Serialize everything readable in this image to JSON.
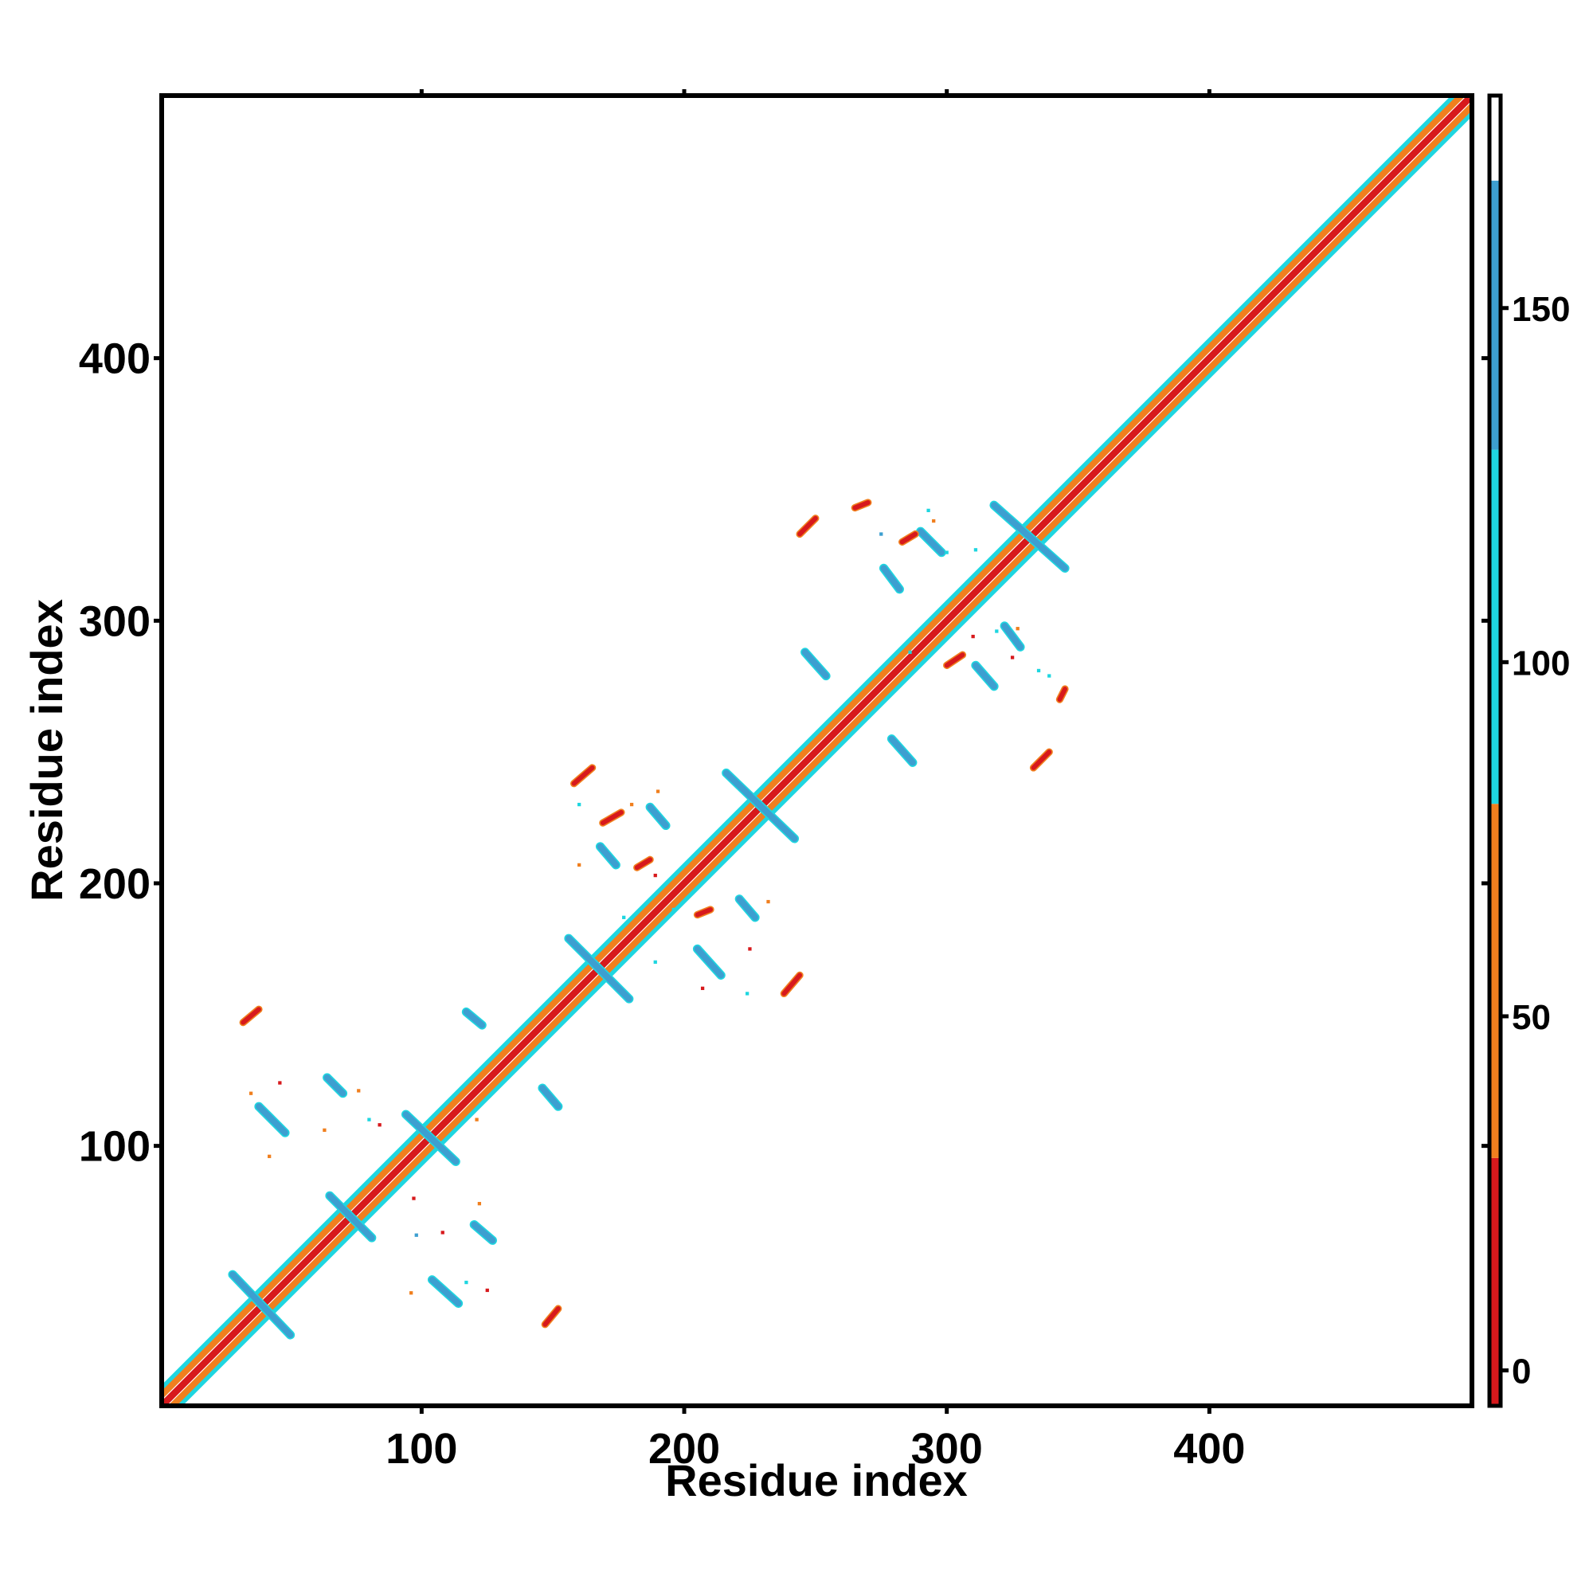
{
  "chart_data": {
    "type": "heatmap",
    "title": "",
    "xlabel": "Residue index",
    "ylabel": "Residue index",
    "xlim": [
      1,
      500
    ],
    "ylim": [
      1,
      500
    ],
    "x_ticks": [
      "100",
      "200",
      "300",
      "400"
    ],
    "y_ticks": [
      "100",
      "200",
      "300",
      "400"
    ],
    "grid": false,
    "legend": "colorbar-right",
    "colorbar": {
      "range": [
        -5,
        180
      ],
      "ticks": [
        "0",
        "50",
        "100",
        "150"
      ],
      "bands": [
        {
          "from": -5,
          "to": 30,
          "color": "#d7191c"
        },
        {
          "from": 30,
          "to": 80,
          "color": "#f07f1e"
        },
        {
          "from": 80,
          "to": 130,
          "color": "#1ed6e0"
        },
        {
          "from": 130,
          "to": 168,
          "color": "#3d9fd0"
        },
        {
          "from": 168,
          "to": 180,
          "color": "#ffffff"
        }
      ]
    },
    "diagonal": {
      "from": 1,
      "to": 499
    },
    "strands_blue": [
      {
        "x1": 28,
        "y1": 51,
        "x2": 50,
        "y2": 28
      },
      {
        "x1": 38,
        "y1": 115,
        "x2": 48,
        "y2": 105
      },
      {
        "x1": 64,
        "y1": 126,
        "x2": 70,
        "y2": 120
      },
      {
        "x1": 65,
        "y1": 81,
        "x2": 81,
        "y2": 65
      },
      {
        "x1": 94,
        "y1": 112,
        "x2": 113,
        "y2": 94
      },
      {
        "x1": 104,
        "y1": 49,
        "x2": 114,
        "y2": 40
      },
      {
        "x1": 117,
        "y1": 151,
        "x2": 123,
        "y2": 146
      },
      {
        "x1": 120,
        "y1": 70,
        "x2": 127,
        "y2": 64
      },
      {
        "x1": 146,
        "y1": 122,
        "x2": 152,
        "y2": 115
      },
      {
        "x1": 156,
        "y1": 179,
        "x2": 179,
        "y2": 156
      },
      {
        "x1": 168,
        "y1": 214,
        "x2": 174,
        "y2": 207
      },
      {
        "x1": 187,
        "y1": 229,
        "x2": 193,
        "y2": 222
      },
      {
        "x1": 205,
        "y1": 175,
        "x2": 214,
        "y2": 165
      },
      {
        "x1": 221,
        "y1": 194,
        "x2": 227,
        "y2": 187
      },
      {
        "x1": 216,
        "y1": 242,
        "x2": 242,
        "y2": 217
      },
      {
        "x1": 246,
        "y1": 288,
        "x2": 254,
        "y2": 279
      },
      {
        "x1": 279,
        "y1": 255,
        "x2": 287,
        "y2": 246
      },
      {
        "x1": 276,
        "y1": 320,
        "x2": 282,
        "y2": 312
      },
      {
        "x1": 290,
        "y1": 334,
        "x2": 298,
        "y2": 326
      },
      {
        "x1": 311,
        "y1": 283,
        "x2": 318,
        "y2": 275
      },
      {
        "x1": 318,
        "y1": 344,
        "x2": 345,
        "y2": 320
      },
      {
        "x1": 322,
        "y1": 298,
        "x2": 328,
        "y2": 290
      }
    ],
    "strands_red": [
      {
        "x1": 32,
        "y1": 147,
        "x2": 38,
        "y2": 152
      },
      {
        "x1": 147,
        "y1": 32,
        "x2": 152,
        "y2": 38
      },
      {
        "x1": 158,
        "y1": 238,
        "x2": 165,
        "y2": 244
      },
      {
        "x1": 238,
        "y1": 158,
        "x2": 244,
        "y2": 165
      },
      {
        "x1": 244,
        "y1": 333,
        "x2": 250,
        "y2": 339
      },
      {
        "x1": 333,
        "y1": 244,
        "x2": 339,
        "y2": 250
      },
      {
        "x1": 265,
        "y1": 343,
        "x2": 270,
        "y2": 345
      },
      {
        "x1": 343,
        "y1": 270,
        "x2": 345,
        "y2": 274
      },
      {
        "x1": 283,
        "y1": 330,
        "x2": 288,
        "y2": 333
      },
      {
        "x1": 300,
        "y1": 283,
        "x2": 306,
        "y2": 287
      },
      {
        "x1": 169,
        "y1": 223,
        "x2": 176,
        "y2": 227
      },
      {
        "x1": 205,
        "y1": 188,
        "x2": 210,
        "y2": 190
      },
      {
        "x1": 182,
        "y1": 206,
        "x2": 187,
        "y2": 209
      }
    ],
    "specks": [
      {
        "x": 35,
        "y": 120,
        "c": "o"
      },
      {
        "x": 46,
        "y": 124,
        "c": "r"
      },
      {
        "x": 42,
        "y": 96,
        "c": "o"
      },
      {
        "x": 63,
        "y": 106,
        "c": "o"
      },
      {
        "x": 76,
        "y": 121,
        "c": "o"
      },
      {
        "x": 80,
        "y": 110,
        "c": "c"
      },
      {
        "x": 84,
        "y": 108,
        "c": "r"
      },
      {
        "x": 97,
        "y": 80,
        "c": "r"
      },
      {
        "x": 98,
        "y": 66,
        "c": "b"
      },
      {
        "x": 96,
        "y": 44,
        "c": "o"
      },
      {
        "x": 108,
        "y": 67,
        "c": "r"
      },
      {
        "x": 117,
        "y": 48,
        "c": "c"
      },
      {
        "x": 122,
        "y": 78,
        "c": "o"
      },
      {
        "x": 125,
        "y": 45,
        "c": "r"
      },
      {
        "x": 121,
        "y": 110,
        "c": "o"
      },
      {
        "x": 160,
        "y": 230,
        "c": "c"
      },
      {
        "x": 160,
        "y": 207,
        "c": "o"
      },
      {
        "x": 177,
        "y": 187,
        "c": "c"
      },
      {
        "x": 180,
        "y": 230,
        "c": "o"
      },
      {
        "x": 190,
        "y": 235,
        "c": "o"
      },
      {
        "x": 189,
        "y": 203,
        "c": "r"
      },
      {
        "x": 189,
        "y": 170,
        "c": "c"
      },
      {
        "x": 196,
        "y": 190,
        "c": "c"
      },
      {
        "x": 207,
        "y": 160,
        "c": "r"
      },
      {
        "x": 224,
        "y": 158,
        "c": "c"
      },
      {
        "x": 225,
        "y": 175,
        "c": "r"
      },
      {
        "x": 232,
        "y": 193,
        "c": "o"
      },
      {
        "x": 275,
        "y": 333,
        "c": "b"
      },
      {
        "x": 285,
        "y": 331,
        "c": "r"
      },
      {
        "x": 286,
        "y": 288,
        "c": "c"
      },
      {
        "x": 293,
        "y": 342,
        "c": "c"
      },
      {
        "x": 295,
        "y": 338,
        "c": "o"
      },
      {
        "x": 300,
        "y": 326,
        "c": "c"
      },
      {
        "x": 310,
        "y": 294,
        "c": "r"
      },
      {
        "x": 319,
        "y": 296,
        "c": "c"
      },
      {
        "x": 325,
        "y": 286,
        "c": "r"
      },
      {
        "x": 327,
        "y": 297,
        "c": "o"
      },
      {
        "x": 335,
        "y": 281,
        "c": "c"
      },
      {
        "x": 339,
        "y": 279,
        "c": "c"
      },
      {
        "x": 311,
        "y": 327,
        "c": "c"
      }
    ]
  }
}
